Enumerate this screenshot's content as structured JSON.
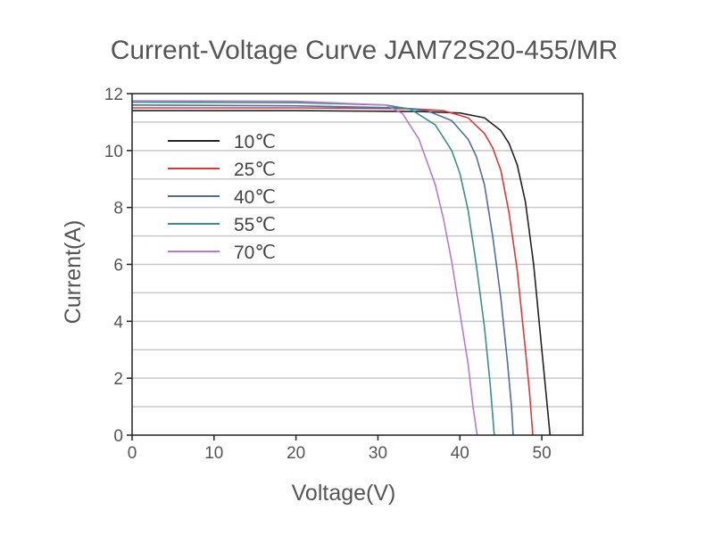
{
  "chart_data": {
    "type": "line",
    "title": "Current-Voltage Curve  JAM72S20-455/MR",
    "xlabel": "Voltage(V)",
    "ylabel": "Current(A)",
    "xlim": [
      0,
      55
    ],
    "ylim": [
      0,
      12
    ],
    "xticks": [
      0,
      10,
      20,
      30,
      40,
      50
    ],
    "yticks": [
      0,
      2,
      4,
      6,
      8,
      10,
      12
    ],
    "grid": true,
    "legend_position": "top-left",
    "series": [
      {
        "name": "10℃",
        "color": "#222222",
        "x": [
          0,
          20,
          35,
          40,
          43,
          45,
          46,
          47,
          48,
          49,
          50,
          50.5,
          51
        ],
        "y": [
          11.4,
          11.4,
          11.37,
          11.32,
          11.15,
          10.7,
          10.25,
          9.5,
          8.2,
          6.0,
          3.0,
          1.5,
          0
        ]
      },
      {
        "name": "25℃",
        "color": "#d83a3a",
        "x": [
          0,
          20,
          34,
          38,
          41,
          43,
          44,
          45,
          46,
          47,
          48,
          48.5,
          48.9
        ],
        "y": [
          11.5,
          11.5,
          11.47,
          11.4,
          11.15,
          10.6,
          10.1,
          9.3,
          7.8,
          5.8,
          3.0,
          1.5,
          0
        ]
      },
      {
        "name": "40℃",
        "color": "#4f6d9e",
        "x": [
          0,
          20,
          33,
          36,
          39,
          41,
          42,
          43,
          44,
          45,
          45.8,
          46.3,
          46.5
        ],
        "y": [
          11.6,
          11.57,
          11.5,
          11.4,
          11.05,
          10.4,
          9.8,
          8.8,
          7.0,
          4.8,
          2.6,
          1.0,
          0
        ]
      },
      {
        "name": "55℃",
        "color": "#3a8f8a",
        "x": [
          0,
          20,
          31,
          34,
          37,
          39,
          40,
          41,
          42,
          43,
          43.7,
          44.2
        ],
        "y": [
          11.7,
          11.68,
          11.6,
          11.45,
          10.9,
          10.0,
          9.2,
          7.9,
          6.0,
          3.8,
          1.8,
          0
        ]
      },
      {
        "name": "70℃",
        "color": "#b57ad0",
        "x": [
          0,
          20,
          31,
          33,
          35,
          37,
          38,
          39,
          40,
          41,
          41.6,
          42.1
        ],
        "y": [
          11.75,
          11.73,
          11.6,
          11.3,
          10.4,
          8.8,
          7.6,
          6.1,
          4.3,
          2.5,
          1.0,
          0
        ]
      }
    ]
  }
}
